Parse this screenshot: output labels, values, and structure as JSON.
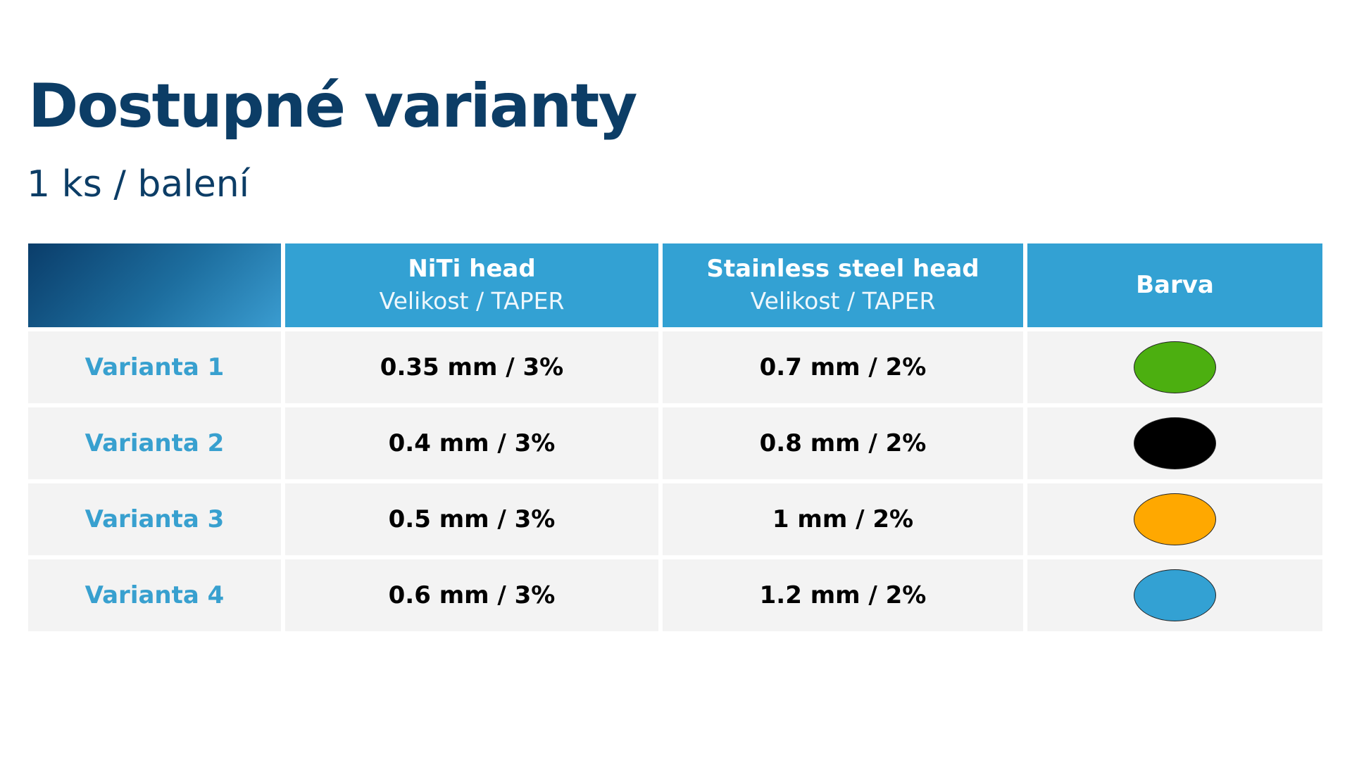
{
  "page": {
    "title": "Dostupné varianty",
    "subtitle": "1 ks / balení"
  },
  "table": {
    "headers": [
      {
        "title": "",
        "subtitle": ""
      },
      {
        "title": "NiTi head",
        "subtitle": "Velikost / TAPER"
      },
      {
        "title": "Stainless steel head",
        "subtitle": "Velikost / TAPER"
      },
      {
        "title": "Barva",
        "subtitle": ""
      }
    ],
    "rows": [
      {
        "label": "Varianta 1",
        "niti": "0.35 mm / 3%",
        "steel": "0.7 mm / 2%",
        "color": "#4caf10"
      },
      {
        "label": "Varianta 2",
        "niti": "0.4 mm / 3%",
        "steel": "0.8 mm / 2%",
        "color": "#000000"
      },
      {
        "label": "Varianta 3",
        "niti": "0.5 mm / 3%",
        "steel": "1 mm / 2%",
        "color": "#ffa800"
      },
      {
        "label": "Varianta 4",
        "niti": "0.6 mm / 3%",
        "steel": "1.2 mm / 2%",
        "color": "#33a1d3"
      }
    ]
  },
  "colors": {
    "title": "#0c3d66",
    "header_bg": "#33a1d3",
    "row_label": "#38a0cf",
    "row_bg": "#f3f3f3"
  }
}
